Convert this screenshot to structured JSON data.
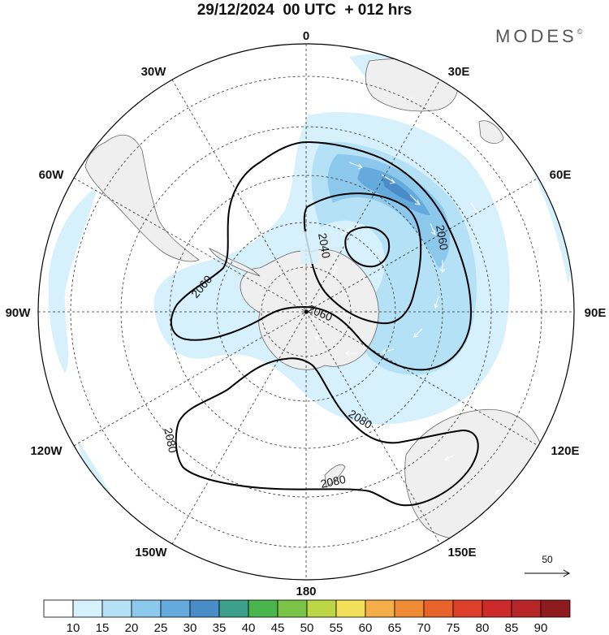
{
  "header": {
    "title": "29/12/2024  00 UTC  + 012 hrs",
    "brand": "MODES",
    "brand_mark": "©"
  },
  "map": {
    "projection": "south-polar-stereographic",
    "longitude_labels": {
      "lon_0": "0",
      "lon_30E": "30E",
      "lon_60E": "60E",
      "lon_90E": "90E",
      "lon_120E": "120E",
      "lon_150E": "150E",
      "lon_180": "180",
      "lon_150W": "150W",
      "lon_120W": "120W",
      "lon_90W": "90W",
      "lon_60W": "60W",
      "lon_30W": "30W"
    },
    "contour_labels": {
      "c2040": "2040",
      "c2060a": "2060",
      "c2060b": "2060",
      "c2060c": "2060",
      "c2080a": "2080",
      "c2080b": "2080",
      "c2080c": "2080"
    },
    "colors": {
      "land": "#efefef",
      "coast": "#666666",
      "grid": "#333333",
      "contour": "#000000"
    }
  },
  "vector_key": {
    "label": "50"
  },
  "colorbar": {
    "labels": [
      "10",
      "15",
      "20",
      "25",
      "30",
      "35",
      "40",
      "45",
      "50",
      "55",
      "60",
      "65",
      "70",
      "75",
      "80",
      "85",
      "90"
    ],
    "colors": [
      "#ffffff",
      "#d6f0fc",
      "#b5e1f7",
      "#8cc7ec",
      "#65aadc",
      "#4a8cc7",
      "#3ca08d",
      "#49b54c",
      "#79c446",
      "#bcd645",
      "#f2e05a",
      "#f4ad47",
      "#ef8a35",
      "#e8632c",
      "#de3f2b",
      "#cd2a2c",
      "#b62528",
      "#8e1b1e"
    ]
  }
}
